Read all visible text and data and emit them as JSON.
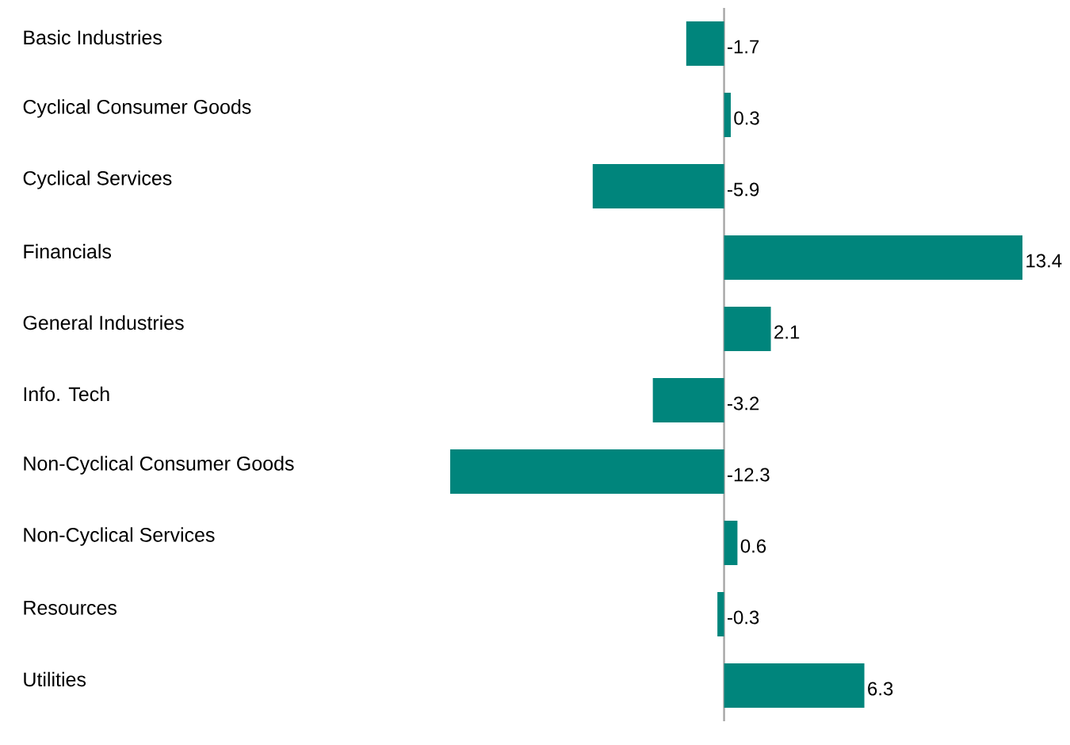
{
  "chart_data": {
    "type": "bar",
    "orientation": "horizontal",
    "categories": [
      "Basic Industries",
      "Cyclical Consumer Goods",
      "Cyclical Services",
      "Financials",
      "General Industries",
      "Info. Tech",
      "Non-Cyclical Consumer Goods",
      "Non-Cyclical Services",
      "Resources",
      "Utilities"
    ],
    "values": [
      -1.7,
      0.3,
      -5.9,
      13.4,
      2.1,
      -3.2,
      -12.3,
      0.6,
      -0.3,
      6.3
    ],
    "color": "#00857c",
    "data_labels": true
  }
}
